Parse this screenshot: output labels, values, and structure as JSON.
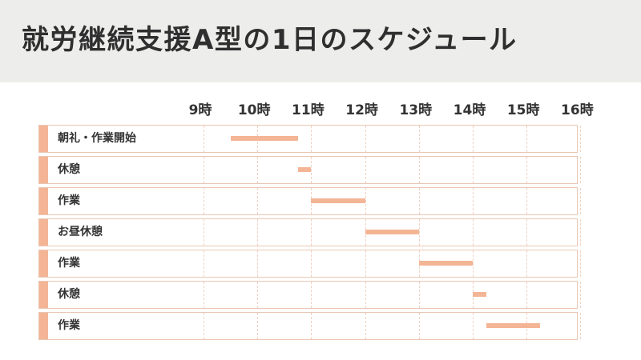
{
  "title": "就労継続支援A型の1日のスケジュール",
  "colors": {
    "banner_bg": "#ededec",
    "accent": "#f4b596",
    "bar": "#f4b596",
    "row_border": "#e8c6b3"
  },
  "chart_data": {
    "type": "gantt",
    "ticks": [
      "9時",
      "10時",
      "11時",
      "12時",
      "13時",
      "14時",
      "15時",
      "16時"
    ],
    "xlim": [
      9,
      16
    ],
    "tasks": [
      {
        "label": "朝礼・作業開始",
        "start": 9.5,
        "end": 10.75
      },
      {
        "label": "休憩",
        "start": 10.75,
        "end": 11.0
      },
      {
        "label": "作業",
        "start": 11.0,
        "end": 12.0
      },
      {
        "label": "お昼休憩",
        "start": 12.0,
        "end": 13.0
      },
      {
        "label": "作業",
        "start": 13.0,
        "end": 14.0
      },
      {
        "label": "休憩",
        "start": 14.0,
        "end": 14.25
      },
      {
        "label": "作業",
        "start": 14.25,
        "end": 15.25
      }
    ]
  }
}
